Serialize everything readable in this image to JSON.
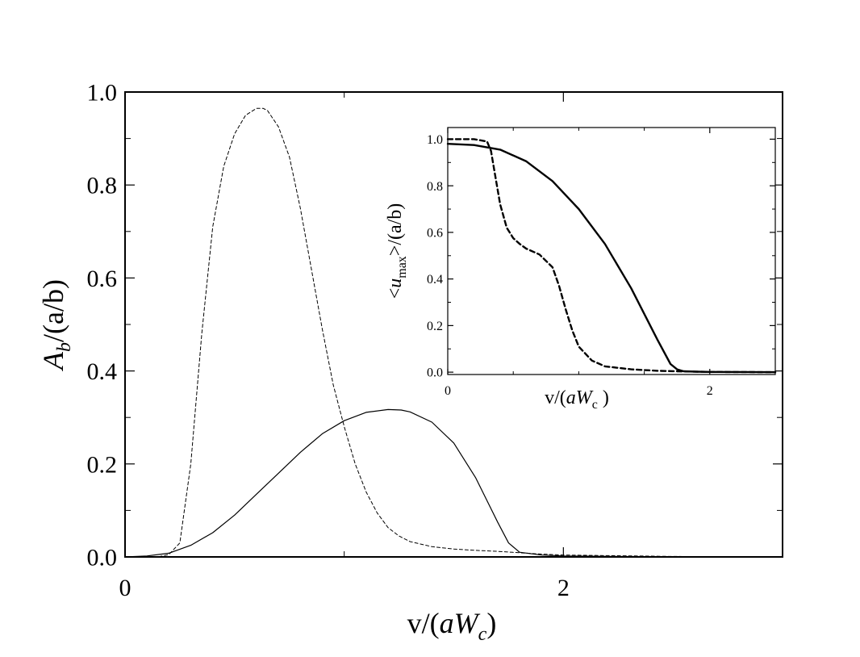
{
  "chart_data": [
    {
      "id": "main",
      "type": "line",
      "xlabel": {
        "base": "v/(",
        "italic": "aW",
        "sub": "c",
        "close": ")"
      },
      "ylabel": {
        "italic": "A",
        "sub": "b",
        "rest": "/(a/b)"
      },
      "xlim": [
        0,
        3
      ],
      "ylim": [
        0,
        1.0
      ],
      "xticks": [
        {
          "value": 0,
          "label": "0"
        },
        {
          "value": 2,
          "label": "2"
        }
      ],
      "xminor": [
        1,
        3
      ],
      "yticks": [
        {
          "value": 0.0,
          "label": "0.0"
        },
        {
          "value": 0.2,
          "label": "0.2"
        },
        {
          "value": 0.4,
          "label": "0.4"
        },
        {
          "value": 0.6,
          "label": "0.6"
        },
        {
          "value": 0.8,
          "label": "0.8"
        },
        {
          "value": 1.0,
          "label": "1.0"
        }
      ],
      "yminor": [
        0.1,
        0.3,
        0.5,
        0.7,
        0.9
      ],
      "grid": false,
      "series": [
        {
          "style": "solid-thin",
          "x": [
            0,
            0.1,
            0.2,
            0.3,
            0.4,
            0.5,
            0.6,
            0.7,
            0.8,
            0.9,
            1.0,
            1.1,
            1.2,
            1.26,
            1.3,
            1.4,
            1.5,
            1.6,
            1.7,
            1.75,
            1.8,
            1.9,
            2.0,
            2.2,
            2.5,
            3.0
          ],
          "y": [
            0,
            0.002,
            0.008,
            0.025,
            0.052,
            0.09,
            0.135,
            0.18,
            0.225,
            0.265,
            0.293,
            0.311,
            0.317,
            0.316,
            0.312,
            0.29,
            0.245,
            0.17,
            0.075,
            0.03,
            0.01,
            0.004,
            0.002,
            0.001,
            0.0005,
            0.0
          ]
        },
        {
          "style": "dashed-thin",
          "x": [
            0,
            0.15,
            0.2,
            0.25,
            0.3,
            0.35,
            0.4,
            0.45,
            0.5,
            0.55,
            0.6,
            0.63,
            0.65,
            0.7,
            0.75,
            0.8,
            0.85,
            0.9,
            0.95,
            1.0,
            1.05,
            1.1,
            1.15,
            1.2,
            1.25,
            1.3,
            1.4,
            1.5,
            1.6,
            1.7,
            1.8,
            1.9,
            2.0,
            2.5,
            3.0
          ],
          "y": [
            0,
            0.0,
            0.005,
            0.03,
            0.2,
            0.48,
            0.71,
            0.84,
            0.91,
            0.95,
            0.965,
            0.965,
            0.96,
            0.925,
            0.86,
            0.75,
            0.62,
            0.49,
            0.37,
            0.28,
            0.2,
            0.14,
            0.095,
            0.063,
            0.045,
            0.033,
            0.022,
            0.017,
            0.014,
            0.012,
            0.009,
            0.006,
            0.004,
            0.001,
            0.0
          ]
        }
      ]
    },
    {
      "id": "inset",
      "type": "line",
      "xlabel": {
        "base": "v/(",
        "italic": "aW",
        "sub": "c",
        "close": " )"
      },
      "ylabel": {
        "open": "<",
        "italic": "u",
        "sub": "max",
        "rest": ">/(a/b)"
      },
      "xlim": [
        0,
        2.5
      ],
      "ylim": [
        -0.01,
        1.05
      ],
      "xticks": [
        {
          "value": 0,
          "label": "0"
        },
        {
          "value": 2,
          "label": "2"
        }
      ],
      "xminor": [
        0.5,
        1.0,
        1.5
      ],
      "yticks": [
        {
          "value": 0.0,
          "label": "0.0"
        },
        {
          "value": 0.2,
          "label": "0.2"
        },
        {
          "value": 0.4,
          "label": "0.4"
        },
        {
          "value": 0.6,
          "label": "0.6"
        },
        {
          "value": 0.8,
          "label": "0.8"
        },
        {
          "value": 1.0,
          "label": "1.0"
        }
      ],
      "yminor": [
        0.1,
        0.3,
        0.5,
        0.7,
        0.9
      ],
      "grid": false,
      "series": [
        {
          "style": "solid-thick",
          "x": [
            0,
            0.2,
            0.4,
            0.6,
            0.8,
            1.0,
            1.2,
            1.4,
            1.6,
            1.7,
            1.75,
            1.8,
            1.9,
            2.0,
            2.5
          ],
          "y": [
            0.98,
            0.975,
            0.955,
            0.905,
            0.82,
            0.7,
            0.55,
            0.36,
            0.14,
            0.035,
            0.012,
            0.004,
            0.002,
            0.001,
            0.0
          ]
        },
        {
          "style": "dashed-thick",
          "x": [
            0,
            0.2,
            0.3,
            0.33,
            0.36,
            0.4,
            0.45,
            0.5,
            0.55,
            0.6,
            0.7,
            0.8,
            0.85,
            0.9,
            0.95,
            1.0,
            1.1,
            1.2,
            1.4,
            1.6,
            1.8,
            2.0,
            2.5
          ],
          "y": [
            1.0,
            1.0,
            0.99,
            0.95,
            0.85,
            0.72,
            0.62,
            0.575,
            0.55,
            0.53,
            0.505,
            0.45,
            0.37,
            0.27,
            0.18,
            0.11,
            0.05,
            0.025,
            0.012,
            0.006,
            0.003,
            0.001,
            0.0
          ]
        }
      ]
    }
  ]
}
